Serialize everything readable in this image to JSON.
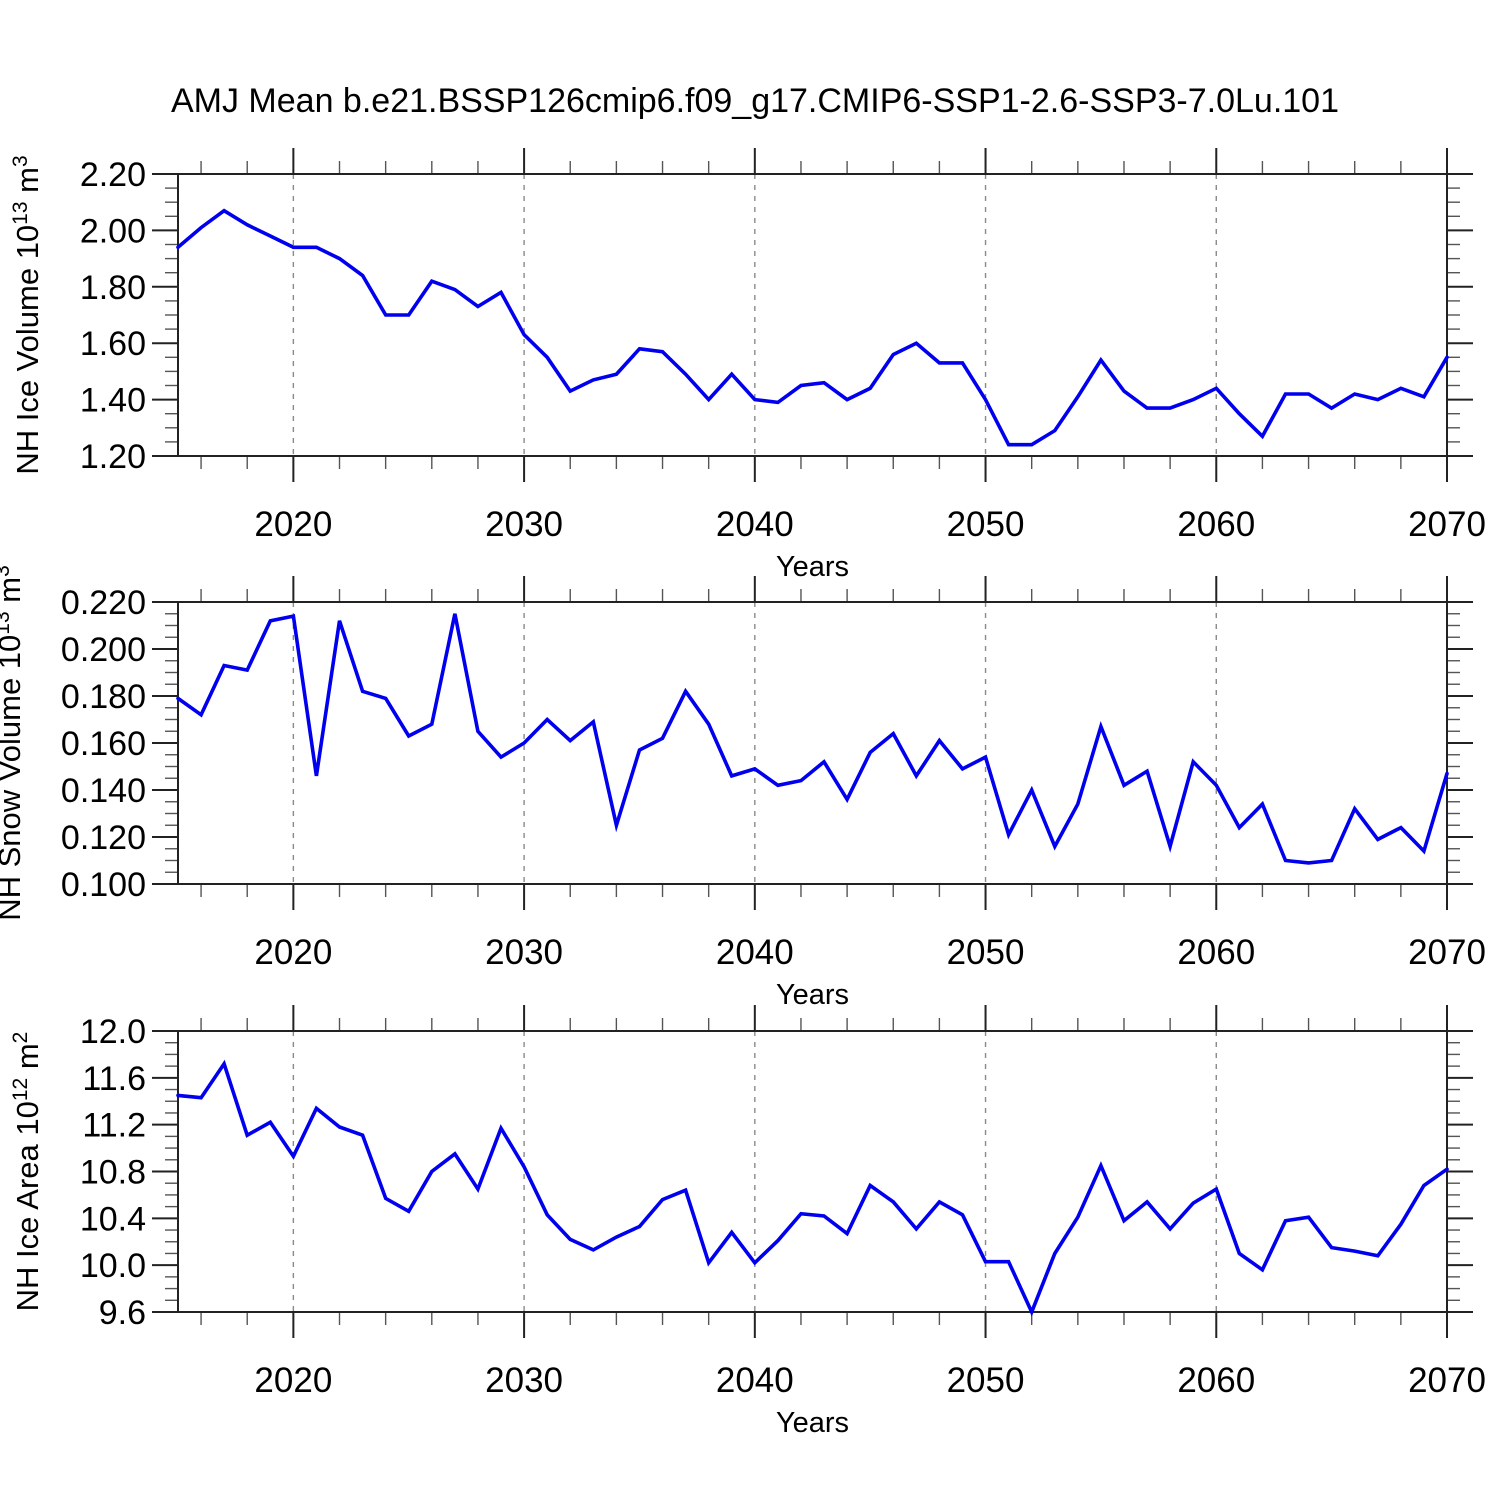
{
  "title": "AMJ Mean b.e21.BSSP126cmip6.f09_g17.CMIP6-SSP1-2.6-SSP3-7.0Lu.101",
  "chart_data": {
    "type": "line",
    "title": "AMJ Mean b.e21.BSSP126cmip6.f09_g17.CMIP6-SSP1-2.6-SSP3-7.0Lu.101",
    "line_color": "#0000EE",
    "grid_color": "#8a8a8a",
    "axis_color": "#222222",
    "x": {
      "label": "Years",
      "min": 2015,
      "max": 2070,
      "step": 1,
      "major_ticks": [
        2020,
        2030,
        2040,
        2050,
        2060,
        2070
      ],
      "minor_step": 2,
      "gridlines": [
        2020,
        2030,
        2040,
        2050,
        2060
      ],
      "tick_labels": [
        "2020",
        "2030",
        "2040",
        "2050",
        "2060",
        "2070"
      ]
    },
    "panels": [
      {
        "name": "nh-ice-volume",
        "ylabel_full": "NH Ice Volume 10^13 m^3",
        "ylabel": {
          "text": "NH Ice Volume",
          "factor": "10",
          "factor_exp": "13",
          "unit": "m",
          "unit_exp": "3"
        },
        "ymin": 1.2,
        "ymax": 2.2,
        "ymajor": 0.2,
        "yminor": 0.05,
        "ytick_labels": [
          "1.20",
          "1.40",
          "1.60",
          "1.80",
          "2.00",
          "2.20"
        ],
        "values": [
          1.94,
          2.01,
          2.07,
          2.02,
          1.98,
          1.94,
          1.94,
          1.9,
          1.84,
          1.7,
          1.7,
          1.82,
          1.79,
          1.73,
          1.78,
          1.63,
          1.55,
          1.43,
          1.47,
          1.49,
          1.58,
          1.57,
          1.49,
          1.4,
          1.49,
          1.4,
          1.39,
          1.45,
          1.46,
          1.4,
          1.44,
          1.56,
          1.6,
          1.53,
          1.53,
          1.4,
          1.24,
          1.24,
          1.29,
          1.41,
          1.54,
          1.43,
          1.37,
          1.37,
          1.4,
          1.44,
          1.35,
          1.27,
          1.42,
          1.42,
          1.37,
          1.42,
          1.4,
          1.44,
          1.41,
          1.55
        ]
      },
      {
        "name": "nh-snow-volume",
        "ylabel_full": "NH Snow Volume 10^13 m^3",
        "ylabel": {
          "text": "NH Snow Volume",
          "factor": "10",
          "factor_exp": "13",
          "unit": "m",
          "unit_exp": "3"
        },
        "ymin": 0.1,
        "ymax": 0.22,
        "ymajor": 0.02,
        "yminor": 0.005,
        "ytick_labels": [
          "0.100",
          "0.120",
          "0.140",
          "0.160",
          "0.180",
          "0.200",
          "0.220"
        ],
        "values": [
          0.179,
          0.172,
          0.193,
          0.191,
          0.212,
          0.214,
          0.146,
          0.212,
          0.182,
          0.179,
          0.163,
          0.168,
          0.215,
          0.165,
          0.154,
          0.16,
          0.17,
          0.161,
          0.169,
          0.125,
          0.157,
          0.162,
          0.182,
          0.168,
          0.146,
          0.149,
          0.142,
          0.144,
          0.152,
          0.136,
          0.156,
          0.164,
          0.146,
          0.161,
          0.149,
          0.154,
          0.121,
          0.14,
          0.116,
          0.134,
          0.167,
          0.142,
          0.148,
          0.116,
          0.152,
          0.142,
          0.124,
          0.134,
          0.11,
          0.109,
          0.11,
          0.132,
          0.119,
          0.124,
          0.114,
          0.147
        ]
      },
      {
        "name": "nh-ice-area",
        "ylabel_full": "NH Ice Area 10^12 m^2",
        "ylabel": {
          "text": "NH Ice Area",
          "factor": "10",
          "factor_exp": "12",
          "unit": "m",
          "unit_exp": "2"
        },
        "ymin": 9.6,
        "ymax": 12.0,
        "ymajor": 0.4,
        "yminor": 0.1,
        "ytick_labels": [
          "9.6",
          "10.0",
          "10.4",
          "10.8",
          "11.2",
          "11.6",
          "12.0"
        ],
        "values": [
          11.45,
          11.43,
          11.72,
          11.11,
          11.22,
          10.93,
          11.34,
          11.18,
          11.11,
          10.57,
          10.46,
          10.8,
          10.95,
          10.65,
          11.17,
          10.84,
          10.43,
          10.22,
          10.13,
          10.24,
          10.33,
          10.56,
          10.64,
          10.02,
          10.28,
          10.02,
          10.21,
          10.44,
          10.42,
          10.27,
          10.68,
          10.54,
          10.31,
          10.54,
          10.43,
          10.03,
          10.03,
          9.6,
          10.1,
          10.41,
          10.85,
          10.38,
          10.54,
          10.31,
          10.53,
          10.65,
          10.1,
          9.96,
          10.38,
          10.41,
          10.15,
          10.12,
          10.08,
          10.35,
          10.68,
          10.82
        ]
      }
    ]
  }
}
